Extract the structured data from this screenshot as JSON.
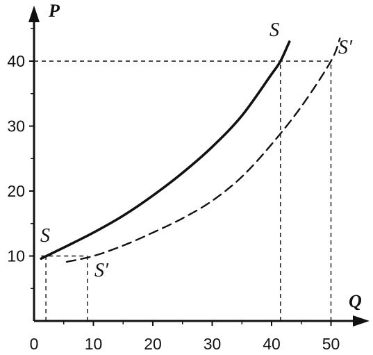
{
  "chart_data": {
    "type": "line",
    "xlabel": "Q",
    "ylabel": "P",
    "xlim": [
      0,
      55
    ],
    "ylim": [
      0,
      47
    ],
    "x_ticks": [
      0,
      10,
      20,
      30,
      40,
      50
    ],
    "y_ticks": [
      10,
      20,
      30,
      40
    ],
    "grid": false,
    "series": [
      {
        "name": "S",
        "style": "solid",
        "points": [
          [
            1.2,
            9.6
          ],
          [
            5,
            11.3
          ],
          [
            10,
            13.6
          ],
          [
            15,
            16.2
          ],
          [
            20,
            19.3
          ],
          [
            25,
            22.8
          ],
          [
            30,
            26.8
          ],
          [
            35,
            31.6
          ],
          [
            40,
            38.0
          ],
          [
            41.5,
            40.0
          ],
          [
            43,
            43.0
          ]
        ],
        "labels": [
          "S",
          "S"
        ]
      },
      {
        "name": "S′",
        "style": "dashed",
        "points": [
          [
            5.5,
            9.1
          ],
          [
            10,
            10.0
          ],
          [
            15,
            11.6
          ],
          [
            20,
            13.6
          ],
          [
            25,
            15.8
          ],
          [
            30,
            18.5
          ],
          [
            35,
            22.2
          ],
          [
            40,
            27.2
          ],
          [
            45,
            33.0
          ],
          [
            50,
            40.0
          ],
          [
            51.5,
            43.5
          ]
        ],
        "labels": [
          "S′",
          "S′"
        ]
      }
    ],
    "reference_lines": [
      {
        "from": [
          0,
          40
        ],
        "to": [
          50,
          40
        ]
      },
      {
        "from": [
          41.5,
          0
        ],
        "to": [
          41.5,
          40
        ]
      },
      {
        "from": [
          50,
          0
        ],
        "to": [
          50,
          40
        ]
      },
      {
        "from": [
          1.2,
          10
        ],
        "to": [
          9,
          10
        ]
      },
      {
        "from": [
          2,
          0
        ],
        "to": [
          2,
          10
        ]
      },
      {
        "from": [
          9,
          0
        ],
        "to": [
          9,
          10
        ]
      }
    ],
    "colors": {
      "ink": "#111111"
    }
  }
}
